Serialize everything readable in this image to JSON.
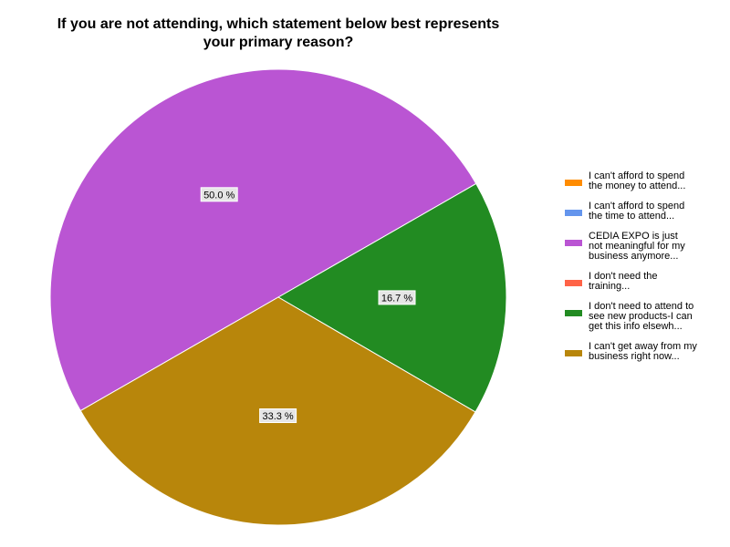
{
  "chart_data": {
    "type": "pie",
    "title_lines": [
      "If you are not attending, which statement below best represents",
      "your primary reason?"
    ],
    "slices": [
      {
        "label": [
          "I can't afford to spend",
          "the money to attend..."
        ],
        "value": 0.0,
        "display": "",
        "color": "#FF8C00"
      },
      {
        "label": [
          "I can't afford to spend",
          "the time to attend..."
        ],
        "value": 0.0,
        "display": "",
        "color": "#6495ED"
      },
      {
        "label": [
          "CEDIA EXPO is just",
          "not meaningful for my",
          "business anymore..."
        ],
        "value": 50.0,
        "display": "50.0 %",
        "color": "#BA55D3"
      },
      {
        "label": [
          "I don't need the",
          "training..."
        ],
        "value": 0.0,
        "display": "",
        "color": "#FF6347"
      },
      {
        "label": [
          "I don't need to attend to",
          "see new products-I can",
          "get this info elsewh..."
        ],
        "value": 16.7,
        "display": "16.7 %",
        "color": "#228B22"
      },
      {
        "label": [
          "I can't get away from my",
          "business right now..."
        ],
        "value": 33.3,
        "display": "33.3 %",
        "color": "#B8860B"
      }
    ],
    "legend_position": "right",
    "value_unit": "%"
  }
}
